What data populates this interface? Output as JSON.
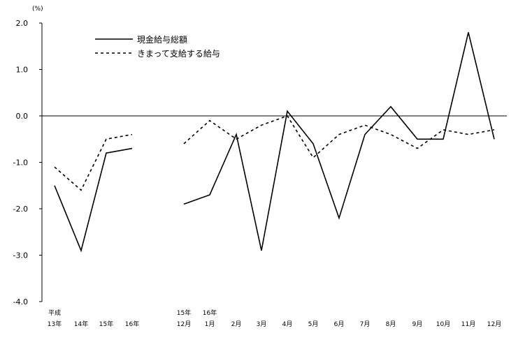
{
  "chart_data": {
    "type": "line",
    "ylabel": "(%)",
    "ylim": [
      -4.0,
      2.0
    ],
    "yticks": [
      "2.0",
      "1.0",
      "0.0",
      "-1.0",
      "-2.0",
      "-3.0",
      "-4.0"
    ],
    "grid": false,
    "legend_position": "top-left",
    "categories": [
      {
        "top": "平成",
        "bottom": "13年"
      },
      {
        "top": "",
        "bottom": "14年"
      },
      {
        "top": "",
        "bottom": "15年"
      },
      {
        "top": "",
        "bottom": "16年"
      },
      {
        "top": "15年",
        "bottom": "12月"
      },
      {
        "top": "16年",
        "bottom": "1月"
      },
      {
        "top": "",
        "bottom": "2月"
      },
      {
        "top": "",
        "bottom": "3月"
      },
      {
        "top": "",
        "bottom": "4月"
      },
      {
        "top": "",
        "bottom": "5月"
      },
      {
        "top": "",
        "bottom": "6月"
      },
      {
        "top": "",
        "bottom": "7月"
      },
      {
        "top": "",
        "bottom": "8月"
      },
      {
        "top": "",
        "bottom": "9月"
      },
      {
        "top": "",
        "bottom": "10月"
      },
      {
        "top": "",
        "bottom": "11月"
      },
      {
        "top": "",
        "bottom": "12月"
      }
    ],
    "series": [
      {
        "name": "現金給与総額",
        "style": "solid",
        "color": "#000000",
        "segments": [
          {
            "start": 0,
            "values": [
              -1.5,
              -2.9,
              -0.8,
              -0.7
            ]
          },
          {
            "start": 4,
            "values": [
              -1.9,
              -1.7,
              -0.4,
              -2.9,
              0.1,
              -0.6,
              -2.2,
              -0.4,
              0.2,
              -0.5,
              -0.5,
              1.8,
              -0.5
            ]
          }
        ]
      },
      {
        "name": "きまって支給する給与",
        "style": "dashed",
        "color": "#000000",
        "segments": [
          {
            "start": 0,
            "values": [
              -1.1,
              -1.6,
              -0.5,
              -0.4
            ]
          },
          {
            "start": 4,
            "values": [
              -0.6,
              -0.1,
              -0.5,
              -0.2,
              0.0,
              -0.9,
              -0.4,
              -0.2,
              -0.4,
              -0.7,
              -0.3,
              -0.4,
              -0.3
            ]
          }
        ]
      }
    ]
  }
}
